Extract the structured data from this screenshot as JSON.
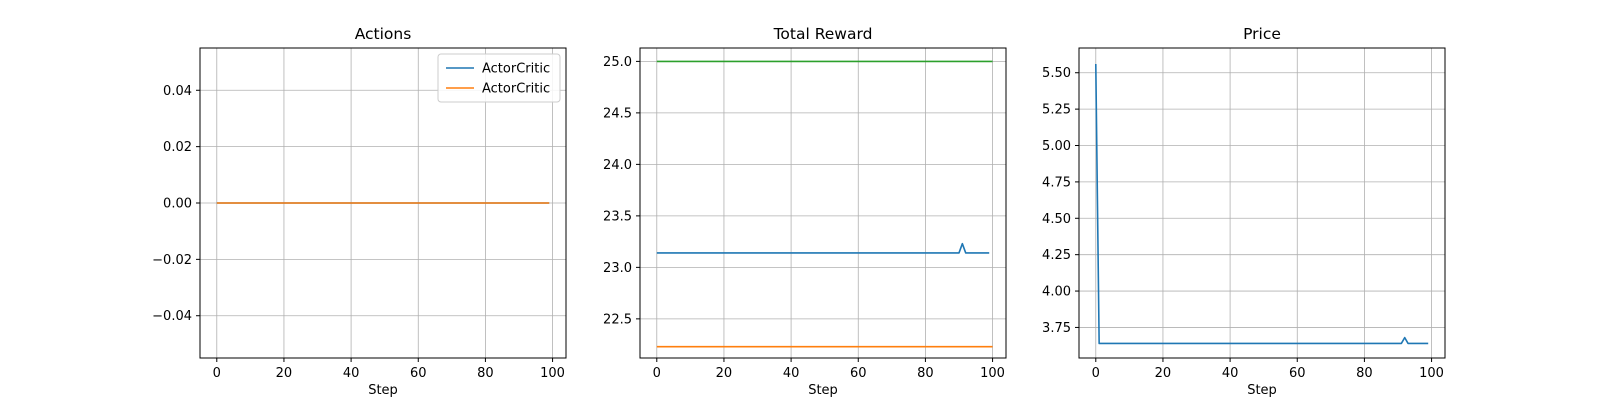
{
  "chart_data": [
    {
      "type": "line",
      "title": "Actions",
      "xlabel": "Step",
      "ylabel": "",
      "xlim": [
        -5,
        104
      ],
      "ylim": [
        -0.055,
        0.055
      ],
      "xticks": [
        0,
        20,
        40,
        60,
        80,
        100
      ],
      "yticks": [
        -0.04,
        -0.02,
        0.0,
        0.02,
        0.04
      ],
      "ytick_labels": [
        "−0.04",
        "−0.02",
        "0.00",
        "0.02",
        "0.04"
      ],
      "grid": true,
      "legend": "top-right",
      "series": [
        {
          "name": "ActorCritic",
          "color": "#1f77b4",
          "points": [
            [
              0,
              0.0
            ],
            [
              99,
              0.0
            ]
          ]
        },
        {
          "name": "ActorCritic",
          "color": "#ff7f0e",
          "points": [
            [
              0,
              0.0
            ],
            [
              99,
              0.0
            ]
          ]
        }
      ]
    },
    {
      "type": "line",
      "title": "Total Reward",
      "xlabel": "Step",
      "ylabel": "",
      "xlim": [
        -5,
        104
      ],
      "ylim": [
        22.12,
        25.13
      ],
      "xticks": [
        0,
        20,
        40,
        60,
        80,
        100
      ],
      "yticks": [
        22.5,
        23.0,
        23.5,
        24.0,
        24.5,
        25.0
      ],
      "ytick_labels": [
        "22.5",
        "23.0",
        "23.5",
        "24.0",
        "24.5",
        "25.0"
      ],
      "grid": true,
      "legend": "none",
      "series": [
        {
          "color": "#2ca02c",
          "points": [
            [
              0,
              25.0
            ],
            [
              100,
              25.0
            ]
          ]
        },
        {
          "color": "#1f77b4",
          "points": [
            [
              0,
              23.14
            ],
            [
              90,
              23.14
            ],
            [
              91,
              23.23
            ],
            [
              92,
              23.14
            ],
            [
              99,
              23.14
            ]
          ]
        },
        {
          "color": "#ff7f0e",
          "points": [
            [
              0,
              22.23
            ],
            [
              100,
              22.23
            ]
          ]
        }
      ]
    },
    {
      "type": "line",
      "title": "Price",
      "xlabel": "Step",
      "ylabel": "",
      "xlim": [
        -5,
        104
      ],
      "ylim": [
        3.54,
        5.67
      ],
      "xticks": [
        0,
        20,
        40,
        60,
        80,
        100
      ],
      "yticks": [
        3.75,
        4.0,
        4.25,
        4.5,
        4.75,
        5.0,
        5.25,
        5.5
      ],
      "ytick_labels": [
        "3.75",
        "4.00",
        "4.25",
        "4.50",
        "4.75",
        "5.00",
        "5.25",
        "5.50"
      ],
      "grid": true,
      "legend": "none",
      "series": [
        {
          "color": "#1f77b4",
          "points": [
            [
              0,
              5.56
            ],
            [
              1,
              3.64
            ],
            [
              91,
              3.64
            ],
            [
              92,
              3.68
            ],
            [
              93,
              3.64
            ],
            [
              99,
              3.64
            ]
          ]
        }
      ]
    }
  ]
}
